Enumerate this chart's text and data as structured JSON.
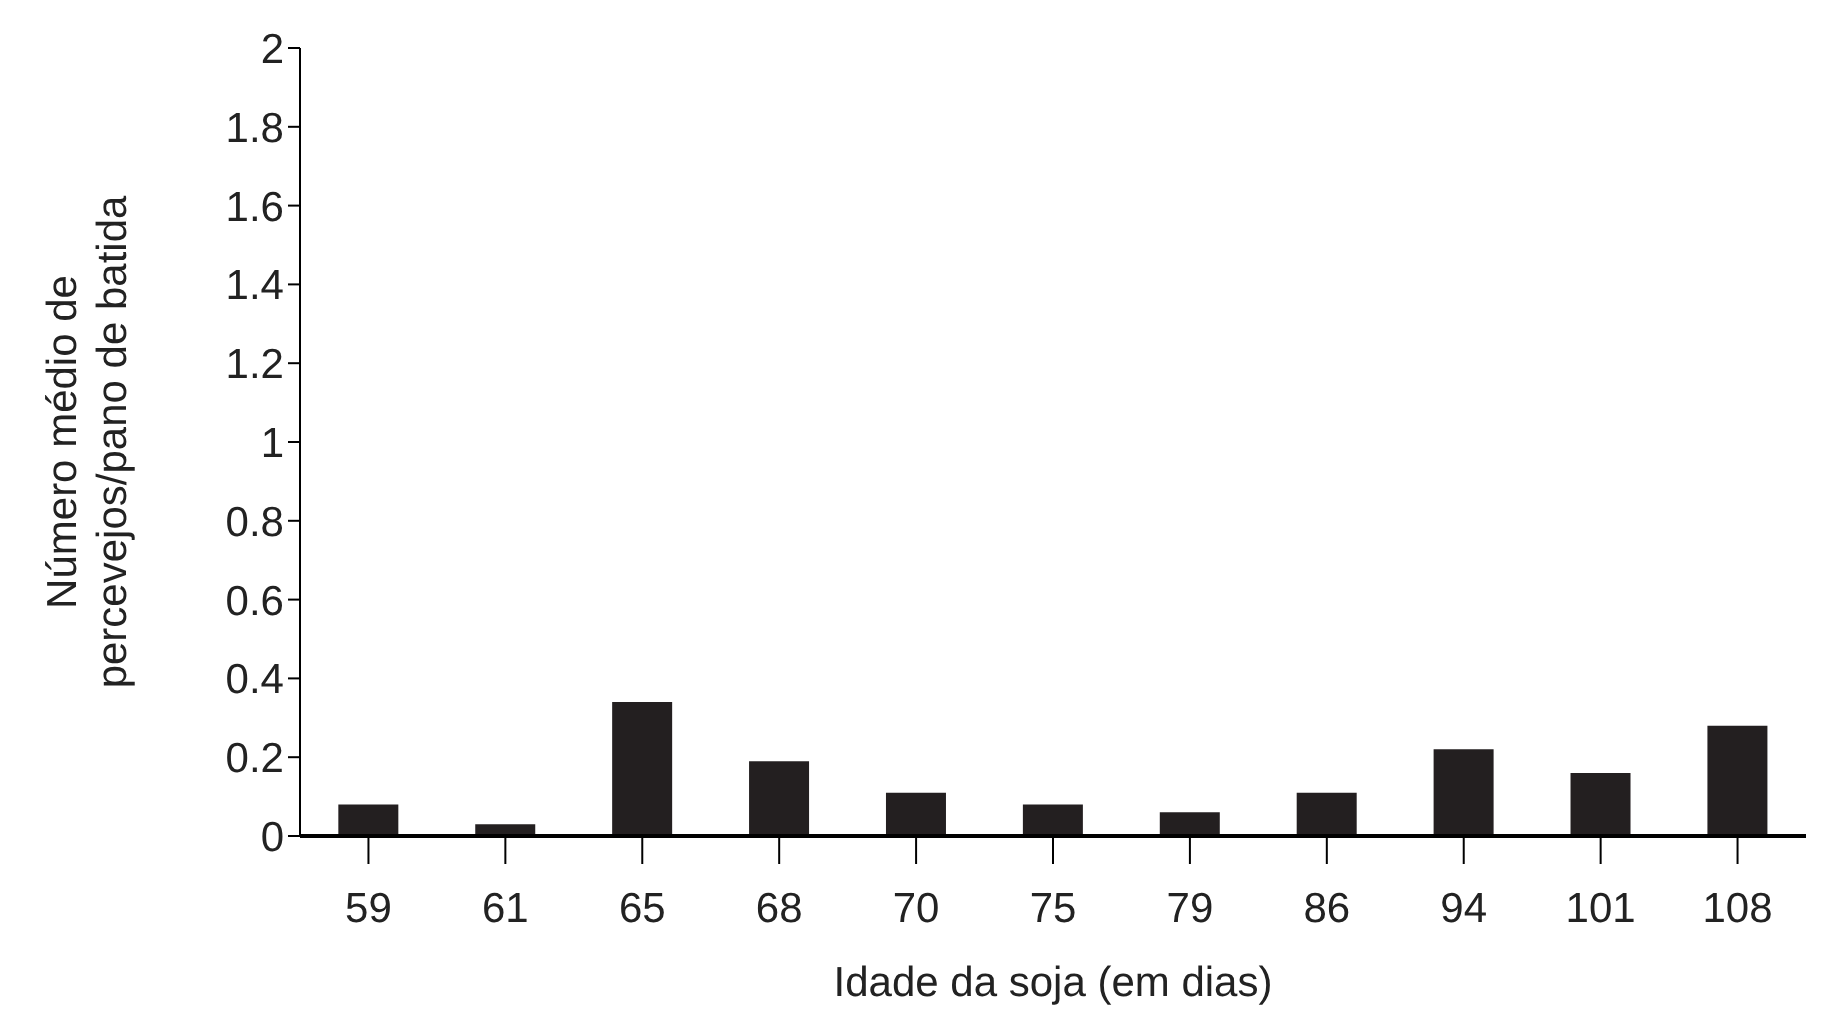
{
  "chart_data": {
    "type": "bar",
    "xlabel": "Idade da soja (em dias)",
    "ylabel": "Número médio de percevejos/pano de batida",
    "categories": [
      "59",
      "61",
      "65",
      "68",
      "70",
      "75",
      "79",
      "86",
      "94",
      "101",
      "108"
    ],
    "values": [
      0.08,
      0.03,
      0.34,
      0.19,
      0.11,
      0.08,
      0.06,
      0.11,
      0.22,
      0.16,
      0.28
    ],
    "color": "#231f20",
    "ylim": [
      0,
      2
    ],
    "yticks": [
      0,
      0.2,
      0.4,
      0.6,
      0.8,
      1,
      1.2,
      1.4,
      1.6,
      1.8,
      2
    ],
    "grid": false,
    "legend": false
  }
}
